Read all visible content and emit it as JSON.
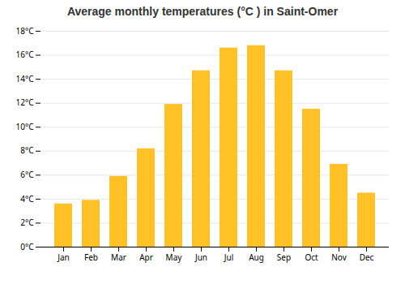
{
  "chart_data": {
    "type": "bar",
    "title": "Average monthly temperatures (°C ) in Saint-Omer",
    "categories": [
      "Jan",
      "Feb",
      "Mar",
      "Apr",
      "May",
      "Jun",
      "Jul",
      "Aug",
      "Sep",
      "Oct",
      "Nov",
      "Dec"
    ],
    "values": [
      3.6,
      3.9,
      5.9,
      8.2,
      11.9,
      14.7,
      16.6,
      16.8,
      14.7,
      11.5,
      6.9,
      4.5
    ],
    "color": "#FFC125",
    "ylim": [
      0,
      18
    ],
    "yticks": [
      {
        "value": 0,
        "label": "0°C"
      },
      {
        "value": 2,
        "label": "2°C"
      },
      {
        "value": 4,
        "label": "4°C"
      },
      {
        "value": 6,
        "label": "6°C"
      },
      {
        "value": 8,
        "label": "8°C"
      },
      {
        "value": 10,
        "label": "10°C"
      },
      {
        "value": 12,
        "label": "12°C"
      },
      {
        "value": 14,
        "label": "14°C"
      },
      {
        "value": 16,
        "label": "16°C"
      },
      {
        "value": 18,
        "label": "18°C"
      }
    ],
    "grid": true
  }
}
